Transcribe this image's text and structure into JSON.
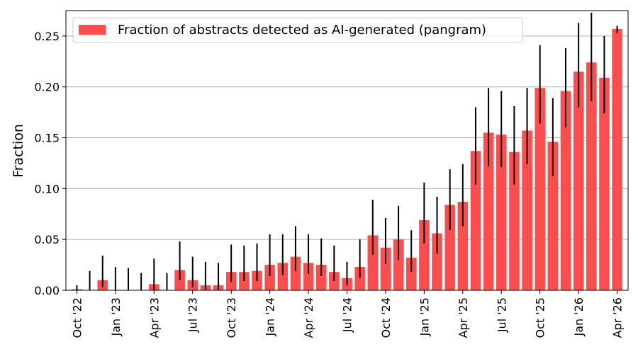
{
  "chart_data": {
    "type": "bar",
    "ylabel": "Fraction",
    "xlabel": "",
    "ylim": [
      0,
      0.275
    ],
    "yticks": [
      0.0,
      0.05,
      0.1,
      0.15,
      0.2,
      0.25
    ],
    "ytick_labels": [
      "0.00",
      "0.05",
      "0.10",
      "0.15",
      "0.20",
      "0.25"
    ],
    "grid": "horizontal",
    "legend_position": "top-left",
    "colors": {
      "bar": "#ff4d4d",
      "error": "#000000",
      "grid": "#b0b0b0"
    },
    "categories": [
      "Oct '22",
      "Nov '22",
      "Dec '22",
      "Jan '23",
      "Feb '23",
      "Mar '23",
      "Apr '23",
      "May '23",
      "Jun '23",
      "Jul '23",
      "Aug '23",
      "Sep '23",
      "Oct '23",
      "Nov '23",
      "Dec '23",
      "Jan '24",
      "Feb '24",
      "Mar '24",
      "Apr '24",
      "May '24",
      "Jun '24",
      "Jul '24",
      "Aug '24",
      "Sep '24",
      "Oct '24",
      "Nov '24",
      "Dec '24",
      "Jan '25",
      "Feb '25",
      "Mar '25",
      "Apr '25",
      "May '25",
      "Jun '25",
      "Jul '25",
      "Aug '25",
      "Sep '25",
      "Oct '25",
      "Nov '25",
      "Dec '25",
      "Jan '26",
      "Feb '26",
      "Mar '26",
      "Apr '26"
    ],
    "xtick_labels": [
      "Oct '22",
      "",
      "",
      "Jan '23",
      "",
      "",
      "Apr '23",
      "",
      "",
      "Jul '23",
      "",
      "",
      "Oct '23",
      "",
      "",
      "Jan '24",
      "",
      "",
      "Apr '24",
      "",
      "",
      "Jul '24",
      "",
      "",
      "Oct '24",
      "",
      "",
      "Jan '25",
      "",
      "",
      "Apr '25",
      "",
      "",
      "Jul '25",
      "",
      "",
      "Oct '25",
      "",
      "",
      "Jan '26",
      "",
      "",
      "Apr '26"
    ],
    "series": [
      {
        "name": "Fraction of abstracts detected as AI-generated (pangram)",
        "values": [
          0.001,
          0.0,
          0.01,
          0.0,
          0.0,
          0.0,
          0.006,
          0.0,
          0.02,
          0.01,
          0.005,
          0.005,
          0.018,
          0.018,
          0.019,
          0.025,
          0.027,
          0.033,
          0.027,
          0.025,
          0.018,
          0.012,
          0.023,
          0.054,
          0.042,
          0.05,
          0.032,
          0.069,
          0.056,
          0.084,
          0.087,
          0.137,
          0.155,
          0.153,
          0.136,
          0.157,
          0.199,
          0.146,
          0.196,
          0.215,
          0.224,
          0.209,
          0.257
        ],
        "err_low": [
          0.0,
          0.0,
          0.003,
          0.0,
          0.0,
          0.0,
          0.0,
          0.0,
          0.01,
          0.003,
          0.0,
          0.0,
          0.008,
          0.009,
          0.009,
          0.014,
          0.015,
          0.019,
          0.016,
          0.014,
          0.009,
          0.005,
          0.012,
          0.035,
          0.026,
          0.03,
          0.018,
          0.046,
          0.036,
          0.059,
          0.063,
          0.104,
          0.122,
          0.121,
          0.104,
          0.124,
          0.164,
          0.112,
          0.16,
          0.18,
          0.186,
          0.174,
          0.253
        ],
        "err_high": [
          0.005,
          0.019,
          0.034,
          0.023,
          0.022,
          0.017,
          0.031,
          0.017,
          0.048,
          0.033,
          0.028,
          0.027,
          0.045,
          0.044,
          0.046,
          0.055,
          0.055,
          0.063,
          0.055,
          0.051,
          0.044,
          0.028,
          0.05,
          0.089,
          0.071,
          0.083,
          0.059,
          0.106,
          0.092,
          0.119,
          0.124,
          0.18,
          0.199,
          0.196,
          0.181,
          0.199,
          0.241,
          0.189,
          0.238,
          0.263,
          0.273,
          0.25,
          0.26
        ]
      }
    ]
  }
}
